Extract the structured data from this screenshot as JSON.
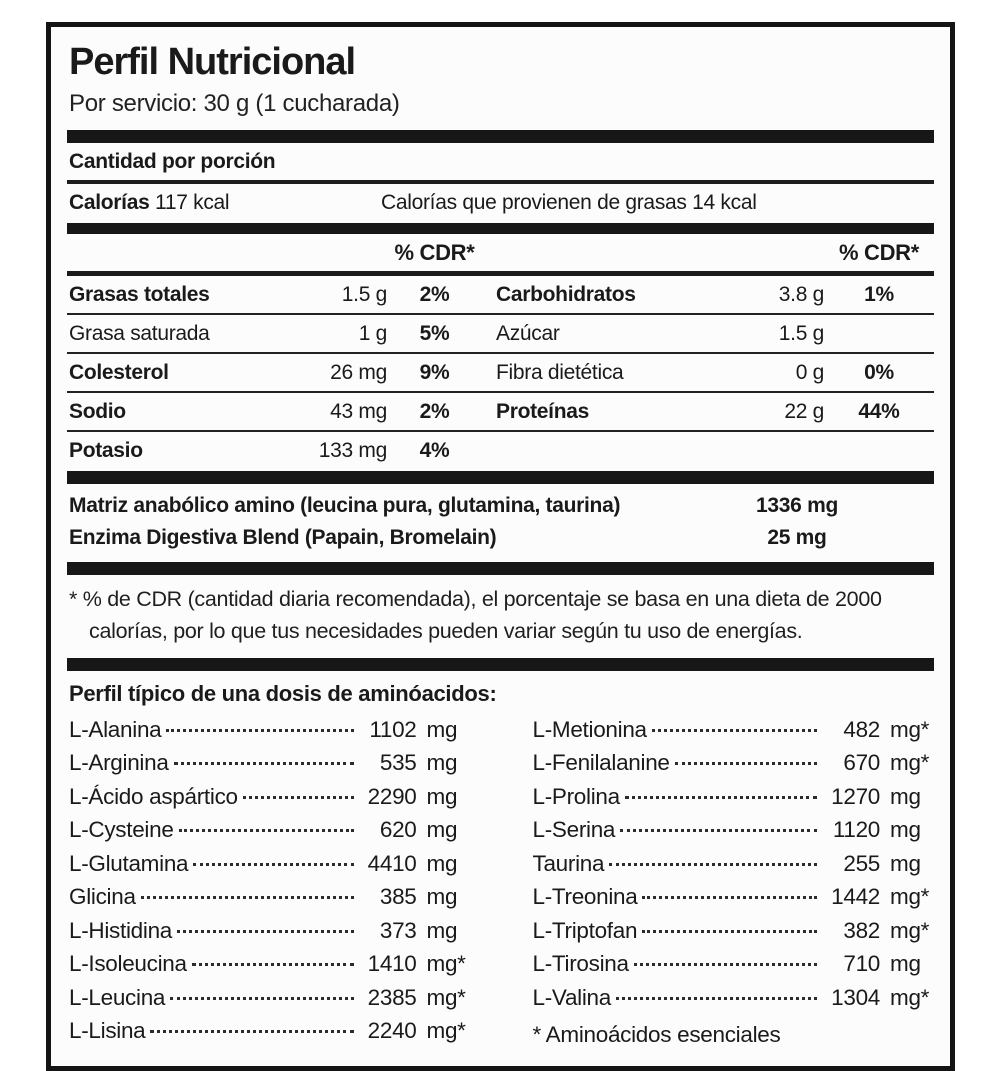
{
  "header": {
    "title": "Perfil Nutricional",
    "serving": "Por servicio: 30 g (1 cucharada)"
  },
  "amount_section": {
    "label": "Cantidad por porción",
    "calories_label": "Calorías",
    "calories_value": "117 kcal",
    "calories_from_fat": "Calorías que provienen de grasas 14 kcal"
  },
  "table": {
    "cdr_header_left": "% CDR*",
    "cdr_header_right": "% CDR*",
    "rows": [
      {
        "left": {
          "name": "Grasas totales",
          "amount": "1.5 g",
          "pct": "2%"
        },
        "right": {
          "name": "Carbohidratos",
          "amount": "3.8 g",
          "pct": "1%"
        }
      },
      {
        "left": {
          "name": "Grasa saturada",
          "amount": "1 g",
          "pct": "5%"
        },
        "right": {
          "name": "Azúcar",
          "amount": "1.5 g",
          "pct": ""
        }
      },
      {
        "left": {
          "name": "Colesterol",
          "amount": "26 mg",
          "pct": "9%"
        },
        "right": {
          "name": "Fibra dietética",
          "amount": "0 g",
          "pct": "0%"
        }
      },
      {
        "left": {
          "name": "Sodio",
          "amount": "43 mg",
          "pct": "2%"
        },
        "right": {
          "name": "Proteínas",
          "amount": "22 g",
          "pct": "44%"
        }
      },
      {
        "left": {
          "name": "Potasio",
          "amount": "133 mg",
          "pct": "4%"
        },
        "right": {
          "name": "",
          "amount": "",
          "pct": ""
        }
      }
    ]
  },
  "blends": [
    {
      "name": "Matriz anabólico amino (leucina pura, glutamina, taurina)",
      "value": "1336 mg"
    },
    {
      "name": "Enzima Digestiva Blend (Papain, Bromelain)",
      "value": "25 mg"
    }
  ],
  "footnote": "* % de CDR (cantidad diaria recomendada), el porcentaje se basa en una dieta de 2000 calorías, por lo que tus necesidades pueden variar según tu uso de energías.",
  "amino": {
    "header": "Perfil típico de una dosis de aminóacidos:",
    "left": [
      {
        "name": "L-Alanina",
        "value": "1102",
        "unit": "mg"
      },
      {
        "name": "L-Arginina",
        "value": "535",
        "unit": "mg"
      },
      {
        "name": "L-Ácido aspártico",
        "value": "2290",
        "unit": "mg"
      },
      {
        "name": "L-Cysteine",
        "value": "620",
        "unit": "mg"
      },
      {
        "name": "L-Glutamina",
        "value": "4410",
        "unit": "mg"
      },
      {
        "name": "Glicina",
        "value": "385",
        "unit": "mg"
      },
      {
        "name": "L-Histidina",
        "value": "373",
        "unit": "mg"
      },
      {
        "name": "L-Isoleucina",
        "value": "1410",
        "unit": "mg*"
      },
      {
        "name": "L-Leucina",
        "value": "2385",
        "unit": "mg*"
      },
      {
        "name": "L-Lisina",
        "value": "2240",
        "unit": "mg*"
      }
    ],
    "right": [
      {
        "name": "L-Metionina",
        "value": "482",
        "unit": "mg*"
      },
      {
        "name": "L-Fenilalanine",
        "value": "670",
        "unit": "mg*"
      },
      {
        "name": "L-Prolina",
        "value": "1270",
        "unit": "mg"
      },
      {
        "name": "L-Serina",
        "value": "1120",
        "unit": "mg"
      },
      {
        "name": "Taurina",
        "value": "255",
        "unit": "mg"
      },
      {
        "name": "L-Treonina",
        "value": "1442",
        "unit": "mg*"
      },
      {
        "name": "L-Triptofan",
        "value": "382",
        "unit": "mg*"
      },
      {
        "name": "L-Tirosina",
        "value": "710",
        "unit": "mg"
      },
      {
        "name": "L-Valina",
        "value": "1304",
        "unit": "mg*"
      }
    ],
    "essentials_note": "* Aminoácidos esenciales"
  },
  "colors": {
    "ink": "#1a1a1a",
    "panel_bg": "#fcfcfc"
  }
}
